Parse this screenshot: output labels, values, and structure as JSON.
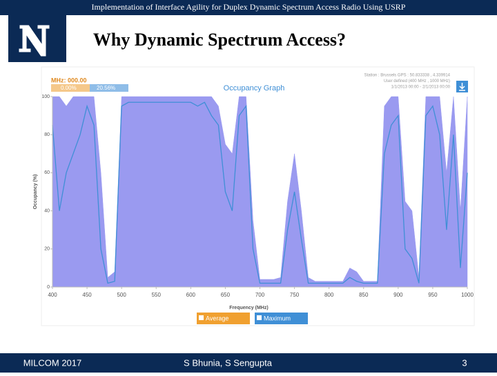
{
  "header": {
    "text": "Implementation of Interface Agility for Duplex Dynamic Spectrum Access Radio Using USRP"
  },
  "title": "Why Dynamic Spectrum Access?",
  "footer": {
    "left": "MILCOM 2017",
    "center": "S Bhunia, S Sengupta",
    "right": "3"
  },
  "chart_data": {
    "type": "area",
    "title": "Occupancy Graph",
    "readout": {
      "frequency": "MHz: 000.00",
      "average": "0.00%",
      "maximum": "20.56%"
    },
    "info": [
      "Station : Brussels  GPS : 50.833338 , 4.339914",
      "User defined (400 MHz , 1000 MHz)",
      "1/1/2013 00:00 - 2/1/2013 00:00"
    ],
    "x_label": "Frequency (MHz)",
    "y_label": "Occupancy (%)",
    "x": [
      400,
      410,
      420,
      430,
      440,
      450,
      460,
      470,
      480,
      490,
      500,
      510,
      520,
      530,
      540,
      550,
      560,
      570,
      580,
      590,
      600,
      610,
      620,
      630,
      640,
      650,
      660,
      670,
      680,
      690,
      700,
      710,
      720,
      730,
      740,
      750,
      760,
      770,
      780,
      790,
      800,
      810,
      820,
      830,
      840,
      850,
      860,
      870,
      880,
      890,
      900,
      910,
      920,
      930,
      940,
      950,
      960,
      970,
      980,
      990,
      1000
    ],
    "series": [
      {
        "name": "Maximum",
        "kind": "area",
        "color": "#9a9af0",
        "values": [
          100,
          100,
          95,
          100,
          100,
          100,
          100,
          60,
          5,
          8,
          100,
          100,
          100,
          100,
          100,
          100,
          100,
          100,
          100,
          100,
          100,
          100,
          100,
          100,
          95,
          75,
          70,
          100,
          100,
          35,
          4,
          4,
          4,
          5,
          45,
          70,
          40,
          5,
          3,
          3,
          3,
          3,
          3,
          10,
          8,
          3,
          3,
          3,
          95,
          100,
          100,
          45,
          40,
          5,
          100,
          100,
          100,
          60,
          100,
          40,
          100
        ]
      },
      {
        "name": "Average",
        "kind": "line",
        "color": "#3f8fd6",
        "values": [
          85,
          40,
          60,
          70,
          80,
          95,
          85,
          20,
          2,
          3,
          95,
          97,
          97,
          97,
          97,
          97,
          97,
          97,
          97,
          97,
          97,
          95,
          97,
          90,
          85,
          50,
          40,
          90,
          95,
          20,
          2,
          2,
          2,
          2,
          30,
          50,
          25,
          2,
          2,
          2,
          2,
          2,
          2,
          5,
          3,
          2,
          2,
          2,
          70,
          85,
          90,
          20,
          15,
          2,
          90,
          95,
          80,
          30,
          80,
          10,
          60
        ]
      }
    ],
    "xlim": [
      400,
      1000
    ],
    "ylim": [
      0,
      100
    ],
    "xticks": [
      400,
      450,
      500,
      550,
      600,
      650,
      700,
      750,
      800,
      850,
      900,
      950,
      1000
    ],
    "yticks": [
      0,
      20,
      40,
      60,
      80,
      100
    ],
    "legend_order": [
      1,
      0
    ],
    "grid": false
  }
}
